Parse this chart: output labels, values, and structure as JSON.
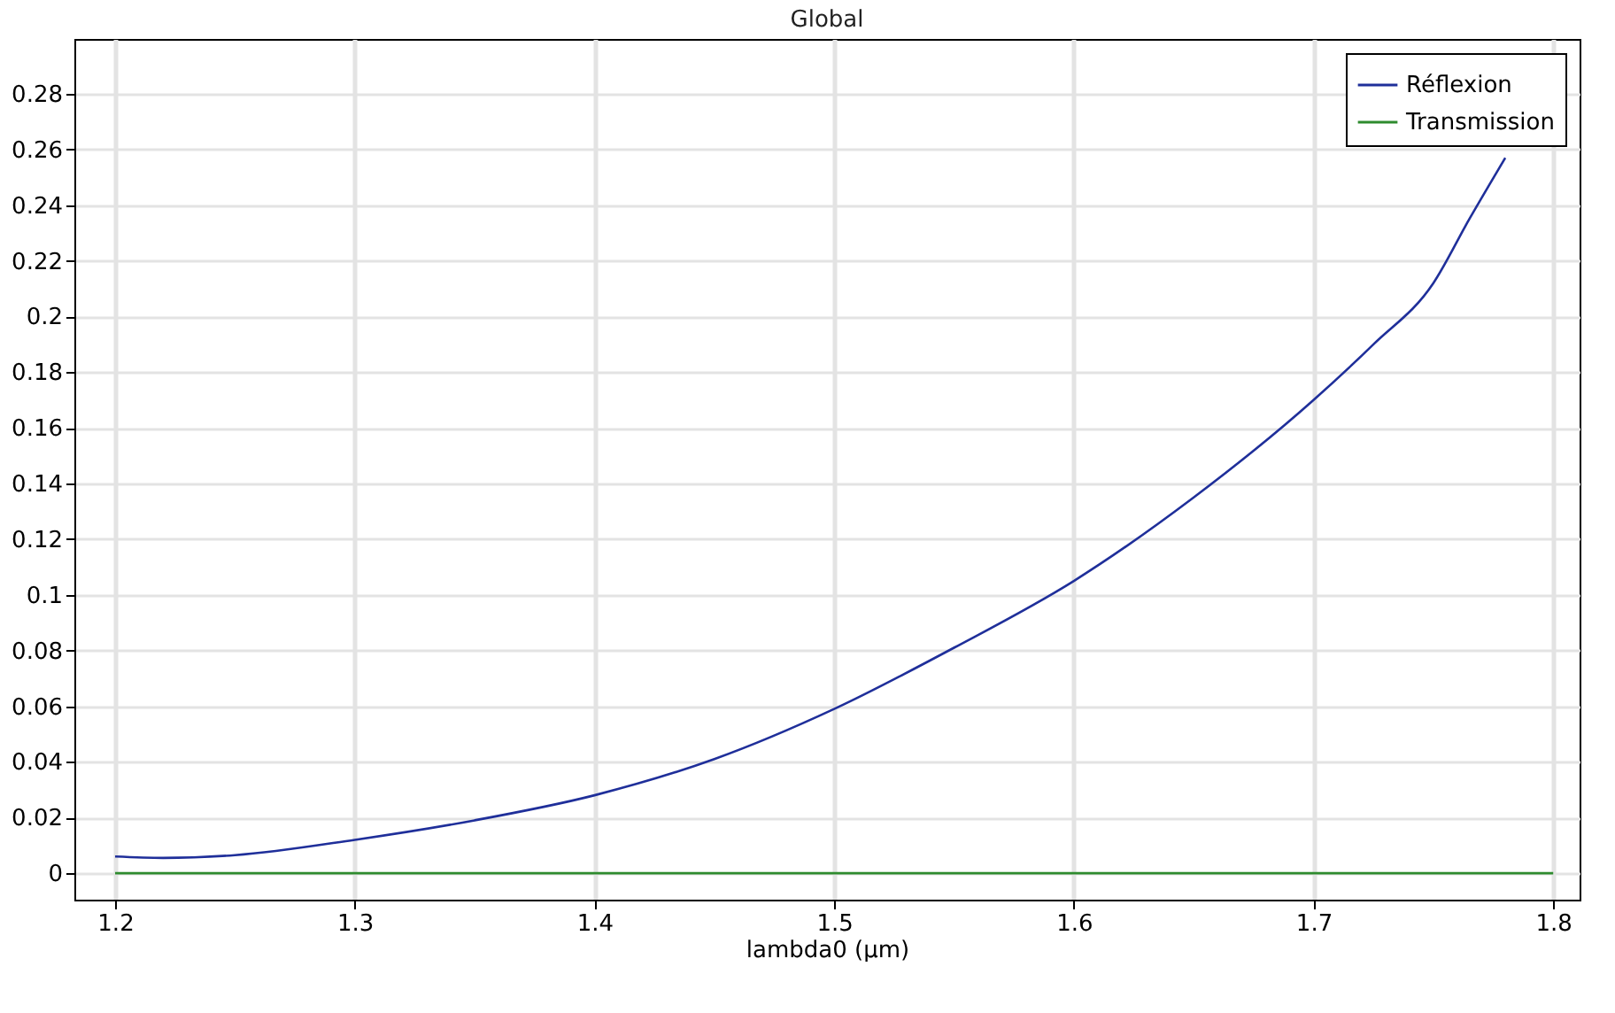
{
  "chart_data": {
    "type": "line",
    "title": "Global",
    "xlabel": "lambda0 (µm)",
    "xlim": [
      1.183,
      1.811
    ],
    "xticks": [
      1.2,
      1.3,
      1.4,
      1.5,
      1.6,
      1.7,
      1.8
    ],
    "ylim": [
      -0.0095,
      0.2997
    ],
    "yticks": [
      0,
      0.02,
      0.04,
      0.06,
      0.08,
      0.1,
      0.12,
      0.14,
      0.16,
      0.18,
      0.2,
      0.22,
      0.24,
      0.26,
      0.28
    ],
    "grid": true,
    "legend": "top right",
    "series": [
      {
        "name": "Réflexion",
        "color": "#1f2f9a",
        "x": [
          1.2,
          1.22,
          1.25,
          1.3,
          1.35,
          1.4,
          1.45,
          1.5,
          1.55,
          1.6,
          1.65,
          1.7,
          1.725,
          1.75,
          1.765,
          1.78
        ],
        "values": [
          0.006,
          0.0055,
          0.0065,
          0.012,
          0.019,
          0.028,
          0.041,
          0.059,
          0.081,
          0.105,
          0.135,
          0.17,
          0.19,
          0.212,
          0.235,
          0.257
        ]
      },
      {
        "name": "Transmission",
        "color": "#2e8b2e",
        "x": [
          1.2,
          1.8
        ],
        "values": [
          0,
          0
        ]
      }
    ]
  }
}
